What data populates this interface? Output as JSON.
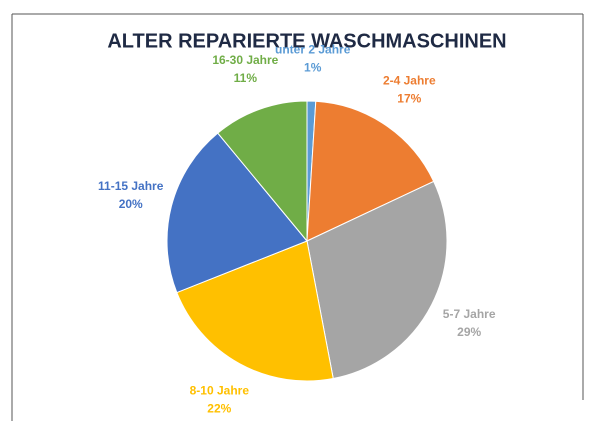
{
  "chart_data": {
    "type": "pie",
    "title": "ALTER REPARIERTE WASCHMASCHINEN",
    "categories": [
      "unter 2 Jahre",
      "2-4 Jahre",
      "5-7 Jahre",
      "8-10 Jahre",
      "11-15 Jahre",
      "16-30 Jahre"
    ],
    "values": [
      1,
      17,
      29,
      22,
      20,
      11
    ],
    "value_labels": [
      "1%",
      "17%",
      "29%",
      "22%",
      "20%",
      "11%"
    ],
    "colors": [
      "#5b9bd5",
      "#ed7d31",
      "#a5a5a5",
      "#ffc000",
      "#4472c4",
      "#70ad47"
    ]
  }
}
